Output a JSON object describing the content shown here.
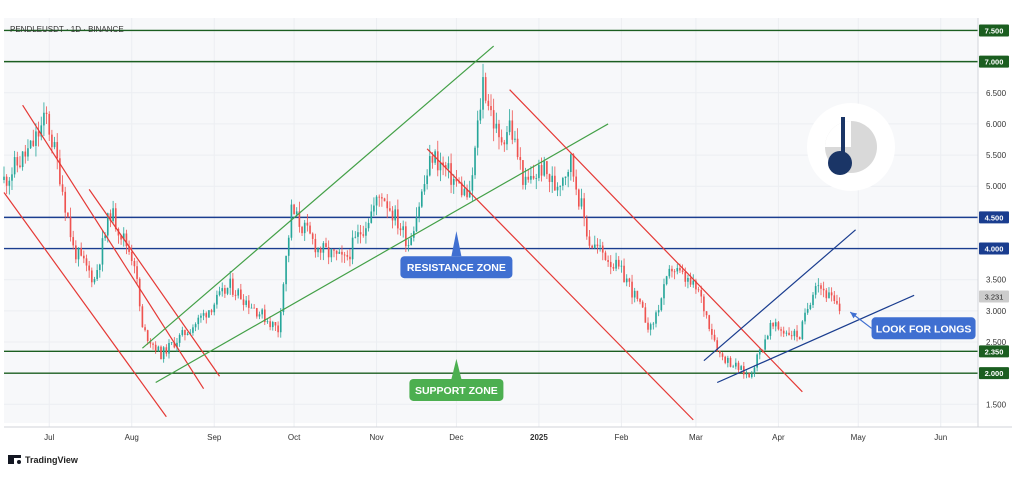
{
  "header": {
    "symbol_title": "PENDLEUSDT · 1D · BINANCE"
  },
  "footer": {
    "brand_label": "TradingView"
  },
  "colors": {
    "bull": "#26a69a",
    "bear": "#ef5350",
    "level_green": "#1b5e20",
    "level_blue": "#1a3d8f",
    "channel_red": "#e53935",
    "channel_green": "#43a047",
    "wedge_blue": "#1a3d8f",
    "resistance_box": "#3f6fd1",
    "support_box": "#4caf50",
    "longs_box": "#3f6fd1",
    "current_price": "#cccccc"
  },
  "chart_data": {
    "type": "candlestick",
    "symbol": "PENDLEUSDT",
    "interval": "1D",
    "exchange": "BINANCE",
    "x_axis": {
      "labels": [
        {
          "text": "Jul",
          "x": "2024-07-01"
        },
        {
          "text": "Aug",
          "x": "2024-08-01"
        },
        {
          "text": "Sep",
          "x": "2024-09-01"
        },
        {
          "text": "Oct",
          "x": "2024-10-01"
        },
        {
          "text": "Nov",
          "x": "2024-11-01"
        },
        {
          "text": "Dec",
          "x": "2024-12-01"
        },
        {
          "text": "2025",
          "x": "2025-01-01"
        },
        {
          "text": "Feb",
          "x": "2025-02-01"
        },
        {
          "text": "Mar",
          "x": "2025-03-01"
        },
        {
          "text": "Apr",
          "x": "2025-04-01"
        },
        {
          "text": "May",
          "x": "2025-05-01"
        },
        {
          "text": "Jun",
          "x": "2025-06-01"
        }
      ],
      "range": [
        "2024-06-14",
        "2025-06-15"
      ]
    },
    "y_axis": {
      "range": [
        1.2,
        7.7
      ],
      "tick_values": [
        "1.500",
        "2.000",
        "2.500",
        "3.000",
        "3.500",
        "4.000",
        "4.500",
        "5.000",
        "5.500",
        "6.000",
        "6.500",
        "7.000",
        "7.500"
      ]
    },
    "current_price": {
      "label": "3.231",
      "value": 3.231
    },
    "levels": [
      {
        "label": "7.500",
        "value": 7.5,
        "kind": "green"
      },
      {
        "label": "7.000",
        "value": 7.0,
        "kind": "green"
      },
      {
        "label": "4.500",
        "value": 4.5,
        "kind": "blue"
      },
      {
        "label": "4.000",
        "value": 4.0,
        "kind": "blue"
      },
      {
        "label": "2.350",
        "value": 2.35,
        "kind": "green"
      },
      {
        "label": "2.000",
        "value": 2.0,
        "kind": "green"
      }
    ],
    "trendlines": [
      {
        "kind": "red",
        "from": {
          "x": "2024-06-21",
          "y": 6.3
        },
        "to": {
          "x": "2024-08-28",
          "y": 1.75
        }
      },
      {
        "kind": "red",
        "from": {
          "x": "2024-06-14",
          "y": 4.9
        },
        "to": {
          "x": "2024-08-14",
          "y": 1.3
        }
      },
      {
        "kind": "red",
        "from": {
          "x": "2024-07-16",
          "y": 4.95
        },
        "to": {
          "x": "2024-09-03",
          "y": 1.95
        }
      },
      {
        "kind": "green",
        "from": {
          "x": "2024-08-05",
          "y": 2.4
        },
        "to": {
          "x": "2024-12-15",
          "y": 7.25
        }
      },
      {
        "kind": "green",
        "from": {
          "x": "2024-08-10",
          "y": 1.85
        },
        "to": {
          "x": "2025-01-27",
          "y": 6.0
        }
      },
      {
        "kind": "red",
        "from": {
          "x": "2024-11-20",
          "y": 5.6
        },
        "to": {
          "x": "2025-02-28",
          "y": 1.25
        }
      },
      {
        "kind": "red",
        "from": {
          "x": "2024-12-21",
          "y": 6.55
        },
        "to": {
          "x": "2025-04-10",
          "y": 1.7
        }
      },
      {
        "kind": "blue",
        "from": {
          "x": "2025-03-04",
          "y": 2.2
        },
        "to": {
          "x": "2025-04-30",
          "y": 4.3
        }
      },
      {
        "kind": "blue",
        "from": {
          "x": "2025-03-09",
          "y": 1.85
        },
        "to": {
          "x": "2025-05-22",
          "y": 3.25
        }
      }
    ],
    "annotations": [
      {
        "id": "resistance",
        "text": "RESISTANCE ZONE",
        "x": "2024-12-01",
        "y": 3.7,
        "arrow_to": 4.28
      },
      {
        "id": "support",
        "text": "SUPPORT ZONE",
        "x": "2024-12-01",
        "y": 1.73,
        "arrow_to": 2.23
      },
      {
        "id": "longs",
        "text": "LOOK FOR LONGS",
        "x": "2025-05-25",
        "y": 2.72,
        "arrow_from": {
          "x": "2025-05-06",
          "y": 2.72
        },
        "arrow_to": {
          "x": "2025-04-28",
          "y": 2.98
        }
      }
    ],
    "anchors": [
      {
        "x": "2024-06-14",
        "o": 5.1,
        "c": 5.6
      },
      {
        "x": "2024-06-24",
        "o": 5.6,
        "c": 6.1
      },
      {
        "x": "2024-06-30",
        "o": 6.1,
        "c": 5.2
      },
      {
        "x": "2024-07-05",
        "o": 5.2,
        "c": 4.0
      },
      {
        "x": "2024-07-10",
        "o": 4.0,
        "c": 3.5
      },
      {
        "x": "2024-07-18",
        "o": 3.5,
        "c": 4.6
      },
      {
        "x": "2024-07-24",
        "o": 4.6,
        "c": 3.8
      },
      {
        "x": "2024-08-02",
        "o": 3.8,
        "c": 2.7
      },
      {
        "x": "2024-08-05",
        "o": 2.7,
        "c": 2.3
      },
      {
        "x": "2024-08-12",
        "o": 2.3,
        "c": 2.8
      },
      {
        "x": "2024-08-25",
        "o": 2.8,
        "c": 3.4
      },
      {
        "x": "2024-09-07",
        "o": 3.4,
        "c": 2.7
      },
      {
        "x": "2024-09-25",
        "o": 2.7,
        "c": 4.6
      },
      {
        "x": "2024-09-30",
        "o": 4.6,
        "c": 4.0
      },
      {
        "x": "2024-10-10",
        "o": 4.0,
        "c": 3.8
      },
      {
        "x": "2024-10-20",
        "o": 3.8,
        "c": 4.9
      },
      {
        "x": "2024-11-03",
        "o": 4.9,
        "c": 4.1
      },
      {
        "x": "2024-11-13",
        "o": 4.1,
        "c": 5.5
      },
      {
        "x": "2024-11-22",
        "o": 5.5,
        "c": 4.8
      },
      {
        "x": "2024-12-06",
        "o": 4.8,
        "c": 6.7
      },
      {
        "x": "2024-12-11",
        "o": 6.7,
        "c": 5.7
      },
      {
        "x": "2024-12-17",
        "o": 5.7,
        "c": 6.0
      },
      {
        "x": "2024-12-21",
        "o": 6.0,
        "c": 5.0
      },
      {
        "x": "2024-12-27",
        "o": 5.0,
        "c": 5.3
      },
      {
        "x": "2025-01-02",
        "o": 5.3,
        "c": 5.0
      },
      {
        "x": "2025-01-07",
        "o": 5.0,
        "c": 5.4
      },
      {
        "x": "2025-01-13",
        "o": 5.4,
        "c": 4.1
      },
      {
        "x": "2025-01-20",
        "o": 4.1,
        "c": 3.9
      },
      {
        "x": "2025-01-26",
        "o": 3.9,
        "c": 3.5
      },
      {
        "x": "2025-02-03",
        "o": 3.5,
        "c": 2.7
      },
      {
        "x": "2025-02-12",
        "o": 2.7,
        "c": 3.7
      },
      {
        "x": "2025-02-20",
        "o": 3.7,
        "c": 3.3
      },
      {
        "x": "2025-03-02",
        "o": 3.3,
        "c": 2.3
      },
      {
        "x": "2025-03-10",
        "o": 2.3,
        "c": 1.95
      },
      {
        "x": "2025-03-21",
        "o": 1.95,
        "c": 2.75
      },
      {
        "x": "2025-03-29",
        "o": 2.75,
        "c": 2.6
      },
      {
        "x": "2025-04-09",
        "o": 2.6,
        "c": 3.5
      },
      {
        "x": "2025-04-15",
        "o": 3.5,
        "c": 3.0
      },
      {
        "x": "2025-04-24",
        "o": 3.0,
        "c": 3.231
      }
    ]
  }
}
